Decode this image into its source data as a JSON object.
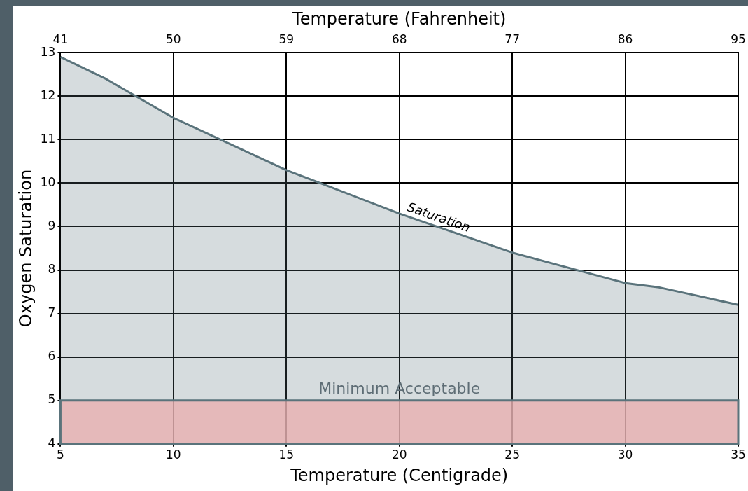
{
  "chart_data": {
    "type": "area",
    "xlabel": "Temperature (Centigrade)",
    "ylabel": "Oxygen Saturation",
    "x2label": "Temperature (Fahrenheit)",
    "x": [
      5,
      7,
      10,
      15,
      20,
      25,
      30,
      31.5,
      35
    ],
    "series": [
      {
        "name": "Saturation",
        "color": "#5a737b",
        "values": [
          12.9,
          12.4,
          11.5,
          10.3,
          9.3,
          8.4,
          7.7,
          7.6,
          7.2
        ]
      }
    ],
    "xlim": [
      5,
      35
    ],
    "xticks": [
      5,
      10,
      15,
      20,
      25,
      30,
      35
    ],
    "x2lim": [
      41,
      95
    ],
    "x2ticks": [
      41,
      50,
      59,
      68,
      77,
      86,
      95
    ],
    "ylim": [
      4,
      13
    ],
    "yticks": [
      4,
      5,
      6,
      7,
      8,
      9,
      10,
      11,
      12,
      13
    ],
    "bands": [
      {
        "axis": "y",
        "from": 4,
        "to": 5,
        "label": "Minimum Acceptable",
        "color": "#e8b0b0"
      }
    ],
    "grid": true,
    "legend": false,
    "marker": "none"
  }
}
